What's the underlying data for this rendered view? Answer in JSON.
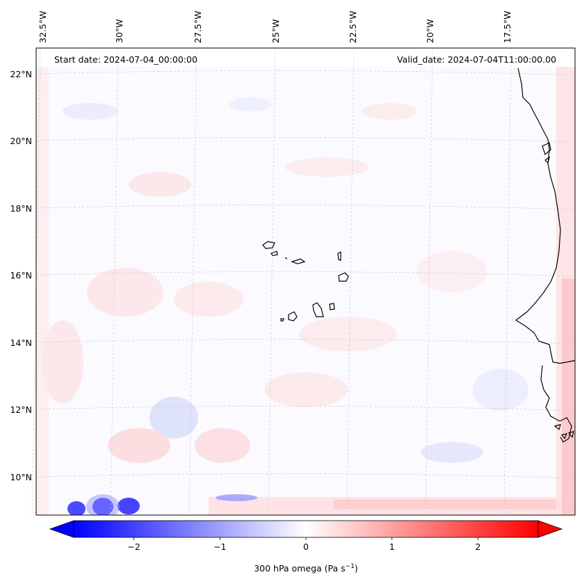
{
  "map": {
    "start_date": "Start date: 2024-07-04_00:00:00",
    "valid_date": "Valid_date: 2024-07-04T11:00:00.00",
    "lon_labels": [
      "32.5°W",
      "30°W",
      "27.5°W",
      "25°W",
      "22.5°W",
      "20°W",
      "17.5°W"
    ],
    "lat_labels": [
      "22°N",
      "20°N",
      "18°N",
      "16°N",
      "14°N",
      "12°N",
      "10°N"
    ],
    "gridline_color": "#c8c8c8",
    "coast_color": "#000000"
  },
  "colorbar": {
    "label_prefix": "300 hPa omega (Pa s",
    "label_exp": "−1",
    "label_suffix": ")",
    "ticks": [
      "−2",
      "−1",
      "0",
      "1",
      "2"
    ],
    "min": -2.7,
    "max": 2.7,
    "low_color": "#0000ff",
    "mid_color": "#ffffff",
    "high_color": "#ff0000"
  }
}
